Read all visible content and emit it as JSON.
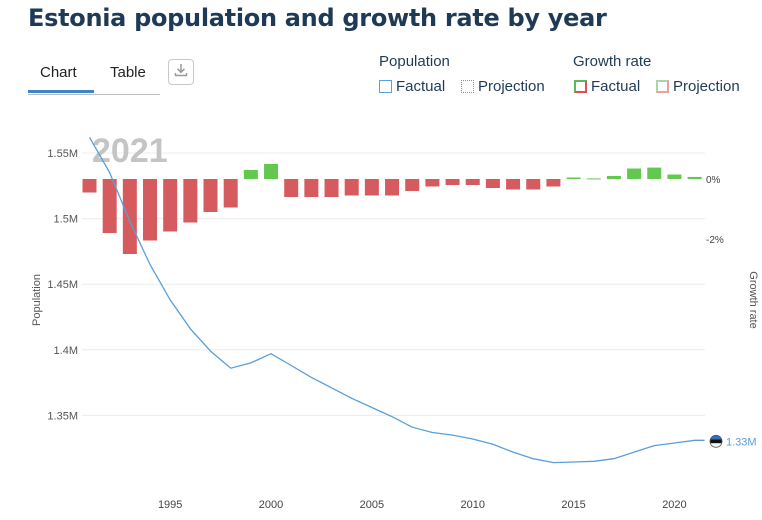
{
  "title": "Estonia population and growth rate by year",
  "tabs": {
    "chart": "Chart",
    "table": "Table"
  },
  "legend": {
    "population_heading": "Population",
    "growth_heading": "Growth rate",
    "factual": "Factual",
    "projection": "Projection"
  },
  "colors": {
    "line": "#5a9fd8",
    "bar_negative": "#d65b5e",
    "bar_positive": "#63c84f",
    "title": "#1f3a56",
    "tab_active": "#3b86c9"
  },
  "icons": {
    "download": "download-icon",
    "flag": "estonia-flag-icon"
  },
  "chart_data": {
    "type": "line+bar",
    "watermark_year": "2021",
    "end_label": "1.33M",
    "y_left_label": "Population",
    "y_right_label": "Growth rate",
    "x_ticks": [
      1995,
      2000,
      2005,
      2010,
      2015,
      2020
    ],
    "y_left_ticks": [
      "1.35M",
      "1.4M",
      "1.45M",
      "1.5M",
      "1.55M"
    ],
    "y_right_ticks": [
      "-2%",
      "0%"
    ],
    "ylim_population": [
      1.31,
      1.56
    ],
    "population": {
      "years": [
        1991,
        1992,
        1993,
        1994,
        1995,
        1996,
        1997,
        1998,
        1999,
        2000,
        2001,
        2002,
        2003,
        2004,
        2005,
        2006,
        2007,
        2008,
        2009,
        2010,
        2011,
        2012,
        2013,
        2014,
        2015,
        2016,
        2017,
        2018,
        2019,
        2020,
        2021
      ],
      "values": [
        1.562,
        1.535,
        1.498,
        1.465,
        1.438,
        1.416,
        1.399,
        1.386,
        1.39,
        1.397,
        1.388,
        1.379,
        1.371,
        1.363,
        1.356,
        1.349,
        1.341,
        1.337,
        1.335,
        1.332,
        1.328,
        1.322,
        1.317,
        1.314,
        1.3145,
        1.315,
        1.317,
        1.322,
        1.327,
        1.329,
        1.331
      ]
    },
    "growth_rate": {
      "years": [
        1991,
        1992,
        1993,
        1994,
        1995,
        1996,
        1997,
        1998,
        1999,
        2000,
        2001,
        2002,
        2003,
        2004,
        2005,
        2006,
        2007,
        2008,
        2009,
        2010,
        2011,
        2012,
        2013,
        2014,
        2015,
        2016,
        2017,
        2018,
        2019,
        2020,
        2021
      ],
      "values": [
        -0.45,
        -1.8,
        -2.5,
        -2.05,
        -1.75,
        -1.45,
        -1.1,
        -0.95,
        0.3,
        0.5,
        -0.6,
        -0.6,
        -0.6,
        -0.55,
        -0.55,
        -0.55,
        -0.4,
        -0.25,
        -0.2,
        -0.2,
        -0.3,
        -0.35,
        -0.35,
        -0.25,
        0.05,
        0.02,
        0.1,
        0.35,
        0.38,
        0.15,
        0.07
      ]
    },
    "grid": true,
    "legend_position": "top-right"
  }
}
